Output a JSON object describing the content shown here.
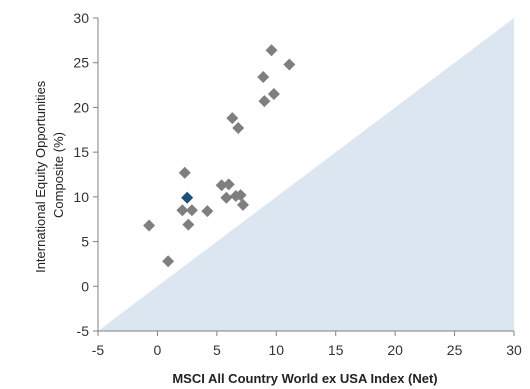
{
  "chart_data": {
    "type": "scatter",
    "title": "",
    "xlabel": "MSCI All Country World ex USA Index (Net)",
    "ylabel_lines": [
      "International Equity Opportunities",
      "Composite (%)"
    ],
    "xlim": [
      -5,
      30
    ],
    "ylim": [
      -5,
      30
    ],
    "xticks": [
      -5,
      0,
      5,
      10,
      15,
      20,
      25,
      30
    ],
    "yticks": [
      -5,
      0,
      5,
      10,
      15,
      20,
      25,
      30
    ],
    "grid": false,
    "shaded_region": "below y = x diagonal",
    "colors": {
      "points": "#7f7f7f",
      "highlight": "#1f4e79",
      "shade": "#dce6f0",
      "axis": "#808080"
    },
    "series": [
      {
        "points": [
          {
            "x": -0.7,
            "y": 6.8
          },
          {
            "x": 0.9,
            "y": 2.8
          },
          {
            "x": 2.1,
            "y": 8.5
          },
          {
            "x": 2.3,
            "y": 12.7
          },
          {
            "x": 2.6,
            "y": 6.9
          },
          {
            "x": 2.9,
            "y": 8.5
          },
          {
            "x": 4.2,
            "y": 8.4
          },
          {
            "x": 5.4,
            "y": 11.3
          },
          {
            "x": 5.8,
            "y": 9.9
          },
          {
            "x": 6.0,
            "y": 11.4
          },
          {
            "x": 6.3,
            "y": 18.8
          },
          {
            "x": 6.6,
            "y": 10.1
          },
          {
            "x": 6.8,
            "y": 17.7
          },
          {
            "x": 7.0,
            "y": 10.2
          },
          {
            "x": 7.2,
            "y": 9.1
          },
          {
            "x": 8.9,
            "y": 23.4
          },
          {
            "x": 9.0,
            "y": 20.7
          },
          {
            "x": 9.6,
            "y": 26.4
          },
          {
            "x": 9.8,
            "y": 21.5
          },
          {
            "x": 11.1,
            "y": 24.8
          }
        ]
      },
      {
        "highlight": true,
        "points": [
          {
            "x": 2.5,
            "y": 9.9
          }
        ]
      }
    ]
  }
}
